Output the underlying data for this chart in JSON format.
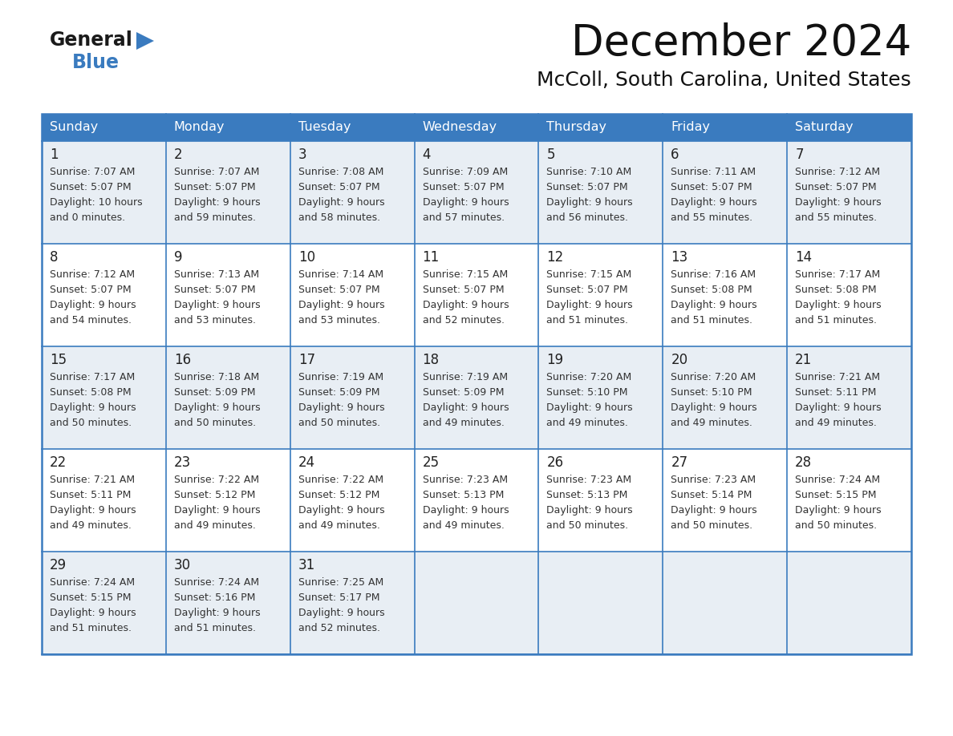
{
  "title": "December 2024",
  "subtitle": "McColl, South Carolina, United States",
  "header_bg_color": "#3a7bbf",
  "header_text_color": "#ffffff",
  "row_even_bg": "#e8eef4",
  "row_odd_bg": "#ffffff",
  "day_headers": [
    "Sunday",
    "Monday",
    "Tuesday",
    "Wednesday",
    "Thursday",
    "Friday",
    "Saturday"
  ],
  "calendar_data": [
    [
      {
        "day": "1",
        "sunrise": "7:07 AM",
        "sunset": "5:07 PM",
        "dl_h": "10 hours",
        "dl_m": "0 minutes"
      },
      {
        "day": "2",
        "sunrise": "7:07 AM",
        "sunset": "5:07 PM",
        "dl_h": "9 hours",
        "dl_m": "59 minutes"
      },
      {
        "day": "3",
        "sunrise": "7:08 AM",
        "sunset": "5:07 PM",
        "dl_h": "9 hours",
        "dl_m": "58 minutes"
      },
      {
        "day": "4",
        "sunrise": "7:09 AM",
        "sunset": "5:07 PM",
        "dl_h": "9 hours",
        "dl_m": "57 minutes"
      },
      {
        "day": "5",
        "sunrise": "7:10 AM",
        "sunset": "5:07 PM",
        "dl_h": "9 hours",
        "dl_m": "56 minutes"
      },
      {
        "day": "6",
        "sunrise": "7:11 AM",
        "sunset": "5:07 PM",
        "dl_h": "9 hours",
        "dl_m": "55 minutes"
      },
      {
        "day": "7",
        "sunrise": "7:12 AM",
        "sunset": "5:07 PM",
        "dl_h": "9 hours",
        "dl_m": "55 minutes"
      }
    ],
    [
      {
        "day": "8",
        "sunrise": "7:12 AM",
        "sunset": "5:07 PM",
        "dl_h": "9 hours",
        "dl_m": "54 minutes"
      },
      {
        "day": "9",
        "sunrise": "7:13 AM",
        "sunset": "5:07 PM",
        "dl_h": "9 hours",
        "dl_m": "53 minutes"
      },
      {
        "day": "10",
        "sunrise": "7:14 AM",
        "sunset": "5:07 PM",
        "dl_h": "9 hours",
        "dl_m": "53 minutes"
      },
      {
        "day": "11",
        "sunrise": "7:15 AM",
        "sunset": "5:07 PM",
        "dl_h": "9 hours",
        "dl_m": "52 minutes"
      },
      {
        "day": "12",
        "sunrise": "7:15 AM",
        "sunset": "5:07 PM",
        "dl_h": "9 hours",
        "dl_m": "51 minutes"
      },
      {
        "day": "13",
        "sunrise": "7:16 AM",
        "sunset": "5:08 PM",
        "dl_h": "9 hours",
        "dl_m": "51 minutes"
      },
      {
        "day": "14",
        "sunrise": "7:17 AM",
        "sunset": "5:08 PM",
        "dl_h": "9 hours",
        "dl_m": "51 minutes"
      }
    ],
    [
      {
        "day": "15",
        "sunrise": "7:17 AM",
        "sunset": "5:08 PM",
        "dl_h": "9 hours",
        "dl_m": "50 minutes"
      },
      {
        "day": "16",
        "sunrise": "7:18 AM",
        "sunset": "5:09 PM",
        "dl_h": "9 hours",
        "dl_m": "50 minutes"
      },
      {
        "day": "17",
        "sunrise": "7:19 AM",
        "sunset": "5:09 PM",
        "dl_h": "9 hours",
        "dl_m": "50 minutes"
      },
      {
        "day": "18",
        "sunrise": "7:19 AM",
        "sunset": "5:09 PM",
        "dl_h": "9 hours",
        "dl_m": "49 minutes"
      },
      {
        "day": "19",
        "sunrise": "7:20 AM",
        "sunset": "5:10 PM",
        "dl_h": "9 hours",
        "dl_m": "49 minutes"
      },
      {
        "day": "20",
        "sunrise": "7:20 AM",
        "sunset": "5:10 PM",
        "dl_h": "9 hours",
        "dl_m": "49 minutes"
      },
      {
        "day": "21",
        "sunrise": "7:21 AM",
        "sunset": "5:11 PM",
        "dl_h": "9 hours",
        "dl_m": "49 minutes"
      }
    ],
    [
      {
        "day": "22",
        "sunrise": "7:21 AM",
        "sunset": "5:11 PM",
        "dl_h": "9 hours",
        "dl_m": "49 minutes"
      },
      {
        "day": "23",
        "sunrise": "7:22 AM",
        "sunset": "5:12 PM",
        "dl_h": "9 hours",
        "dl_m": "49 minutes"
      },
      {
        "day": "24",
        "sunrise": "7:22 AM",
        "sunset": "5:12 PM",
        "dl_h": "9 hours",
        "dl_m": "49 minutes"
      },
      {
        "day": "25",
        "sunrise": "7:23 AM",
        "sunset": "5:13 PM",
        "dl_h": "9 hours",
        "dl_m": "49 minutes"
      },
      {
        "day": "26",
        "sunrise": "7:23 AM",
        "sunset": "5:13 PM",
        "dl_h": "9 hours",
        "dl_m": "50 minutes"
      },
      {
        "day": "27",
        "sunrise": "7:23 AM",
        "sunset": "5:14 PM",
        "dl_h": "9 hours",
        "dl_m": "50 minutes"
      },
      {
        "day": "28",
        "sunrise": "7:24 AM",
        "sunset": "5:15 PM",
        "dl_h": "9 hours",
        "dl_m": "50 minutes"
      }
    ],
    [
      {
        "day": "29",
        "sunrise": "7:24 AM",
        "sunset": "5:15 PM",
        "dl_h": "9 hours",
        "dl_m": "51 minutes"
      },
      {
        "day": "30",
        "sunrise": "7:24 AM",
        "sunset": "5:16 PM",
        "dl_h": "9 hours",
        "dl_m": "51 minutes"
      },
      {
        "day": "31",
        "sunrise": "7:25 AM",
        "sunset": "5:17 PM",
        "dl_h": "9 hours",
        "dl_m": "52 minutes"
      },
      null,
      null,
      null,
      null
    ]
  ],
  "border_color": "#3a7bbf",
  "divider_color": "#3a7bbf",
  "text_color": "#222222",
  "info_text_color": "#333333",
  "logo_general_color": "#1a1a1a",
  "logo_blue_color": "#3a7bbf",
  "logo_triangle_color": "#3a7bbf"
}
